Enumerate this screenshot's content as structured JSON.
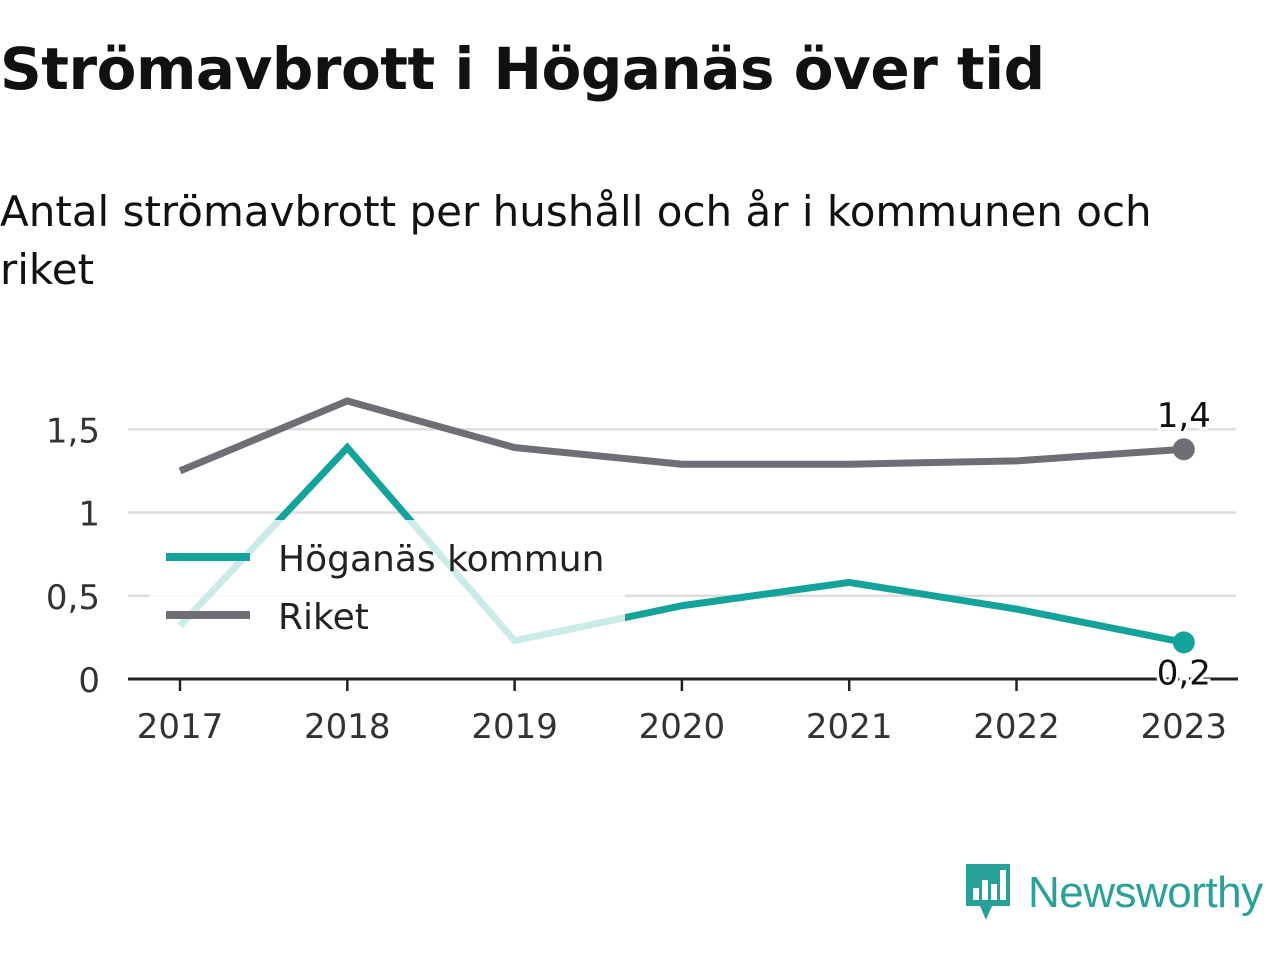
{
  "title": "Strömavbrott i Höganäs över tid",
  "subtitle": "Antal strömavbrott per hushåll och år i kommunen och riket",
  "brand": "Newsworthy",
  "colors": {
    "hoganas": "#14a39a",
    "riket": "#6f6e77",
    "grid": "#dddddd",
    "axis": "#222222",
    "brand": "#2aa198"
  },
  "chart_data": {
    "type": "line",
    "title": "Strömavbrott i Höganäs över tid",
    "subtitle": "Antal strömavbrott per hushåll och år i kommunen och riket",
    "xlabel": "",
    "ylabel": "",
    "x": [
      "2017",
      "2018",
      "2019",
      "2020",
      "2021",
      "2022",
      "2023"
    ],
    "ylim": [
      0,
      1.75
    ],
    "yticks": [
      0,
      0.5,
      1,
      1.5
    ],
    "ytick_labels": [
      "0",
      "0,5",
      "1",
      "1,5"
    ],
    "grid": true,
    "legend_position": "left-middle",
    "series": [
      {
        "name": "Höganäs kommun",
        "values": [
          0.32,
          1.39,
          0.23,
          0.44,
          0.58,
          0.42,
          0.22
        ],
        "end_label": "0,2"
      },
      {
        "name": "Riket",
        "values": [
          1.25,
          1.67,
          1.39,
          1.29,
          1.29,
          1.31,
          1.38
        ],
        "end_label": "1,4"
      }
    ]
  }
}
